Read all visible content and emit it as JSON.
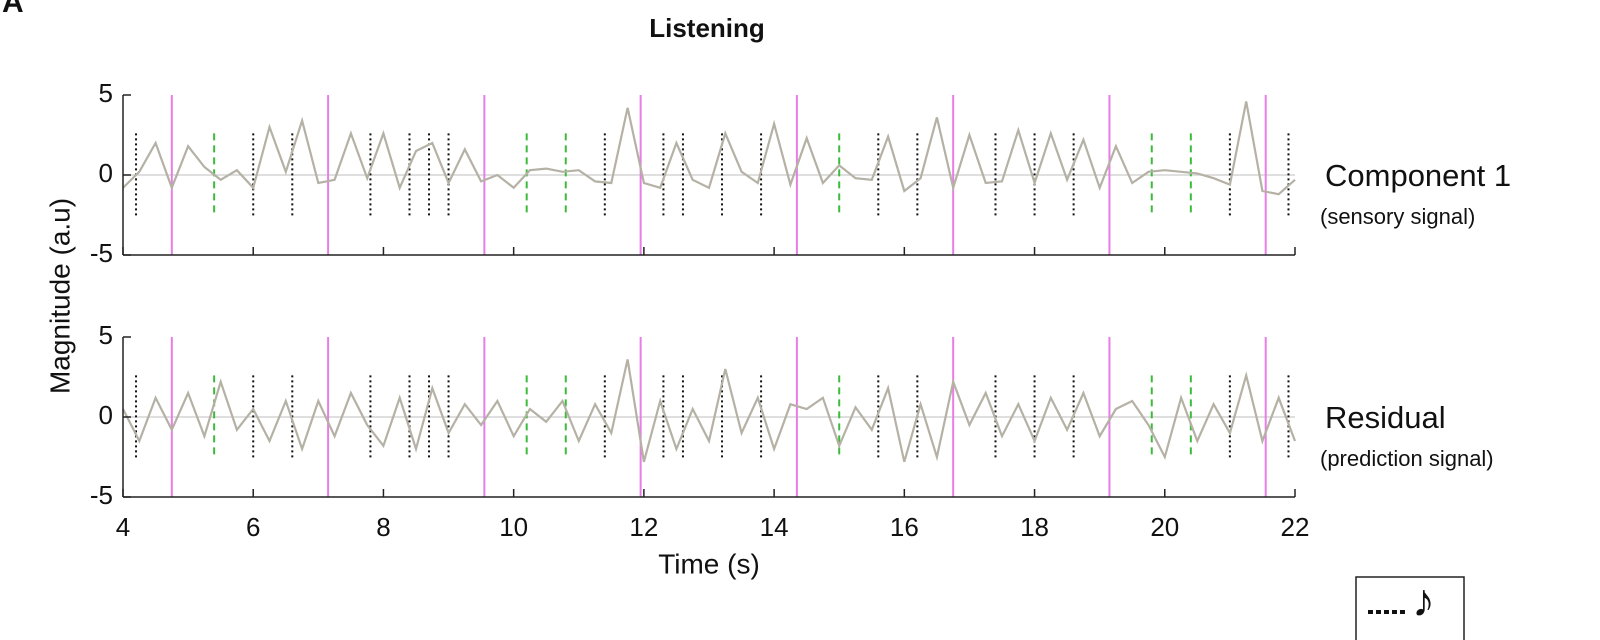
{
  "panel_letter": "A",
  "chart_data": [
    {
      "type": "line",
      "title": "Listening",
      "ylabel": "Magnitude (a.u)",
      "annotation": "Component 1",
      "annotation_sub": "(sensory signal)",
      "xlim": [
        4,
        22
      ],
      "xticks": [
        4,
        6,
        8,
        10,
        12,
        14,
        16,
        18,
        20,
        22
      ],
      "ylim": [
        -5,
        5
      ],
      "yticks": [
        5,
        0,
        -5
      ],
      "x": [
        4,
        4.25,
        4.5,
        4.75,
        5,
        5.25,
        5.5,
        5.75,
        6,
        6.25,
        6.5,
        6.75,
        7,
        7.25,
        7.5,
        7.75,
        8,
        8.25,
        8.5,
        8.75,
        9,
        9.25,
        9.5,
        9.75,
        10,
        10.25,
        10.5,
        10.75,
        11,
        11.25,
        11.5,
        11.75,
        12,
        12.25,
        12.5,
        12.75,
        13,
        13.25,
        13.5,
        13.75,
        14,
        14.25,
        14.5,
        14.75,
        15,
        15.25,
        15.5,
        15.75,
        16,
        16.25,
        16.5,
        16.75,
        17,
        17.25,
        17.5,
        17.75,
        18,
        18.25,
        18.5,
        18.75,
        19,
        19.25,
        19.5,
        19.75,
        20,
        20.25,
        20.5,
        20.75,
        21,
        21.25,
        21.5,
        21.75,
        22
      ],
      "series": [
        {
          "color": "#b5b1a5",
          "values": [
            -0.8,
            0.2,
            2.0,
            -0.8,
            1.8,
            0.5,
            -0.3,
            0.3,
            -0.8,
            3.0,
            0.2,
            3.4,
            -0.5,
            -0.3,
            2.6,
            -0.2,
            2.6,
            -0.8,
            1.5,
            2.0,
            -0.5,
            1.6,
            -0.4,
            0,
            -0.8,
            0.3,
            0.4,
            0.2,
            0.3,
            -0.4,
            -0.5,
            4.2,
            -0.5,
            -0.8,
            2.0,
            -0.3,
            -0.8,
            2.6,
            0.2,
            -0.5,
            3.2,
            -0.6,
            2.3,
            -0.5,
            0.6,
            -0.2,
            -0.3,
            2.4,
            -1.0,
            -0.2,
            3.6,
            -0.8,
            2.5,
            -0.5,
            -0.4,
            2.8,
            -0.5,
            2.6,
            -0.3,
            2.2,
            -0.8,
            1.8,
            -0.5,
            0.2,
            0.3,
            0.2,
            0.1,
            -0.2,
            -0.6,
            4.6,
            -1.0,
            -1.2,
            -0.3
          ]
        }
      ],
      "events": {
        "bars": [
          4.75,
          7.15,
          9.55,
          11.95,
          14.35,
          16.75,
          19.15,
          21.55
        ],
        "onsets": [
          4.2,
          6.0,
          6.6,
          7.8,
          8.4,
          8.7,
          9.0,
          11.4,
          12.3,
          12.6,
          13.2,
          13.8,
          15.6,
          16.2,
          17.4,
          18.0,
          18.6,
          21.0,
          21.9
        ],
        "omissions": [
          5.4,
          10.2,
          10.8,
          15.0,
          19.8,
          20.4
        ]
      }
    },
    {
      "type": "line",
      "xlabel": "Time (s)",
      "annotation": "Residual",
      "annotation_sub": "(prediction signal)",
      "xlim": [
        4,
        22
      ],
      "xticks": [
        4,
        6,
        8,
        10,
        12,
        14,
        16,
        18,
        20,
        22
      ],
      "ylim": [
        -5,
        5
      ],
      "yticks": [
        5,
        0,
        -5
      ],
      "x": [
        4,
        4.25,
        4.5,
        4.75,
        5,
        5.25,
        5.5,
        5.75,
        6,
        6.25,
        6.5,
        6.75,
        7,
        7.25,
        7.5,
        7.75,
        8,
        8.25,
        8.5,
        8.75,
        9,
        9.25,
        9.5,
        9.75,
        10,
        10.25,
        10.5,
        10.75,
        11,
        11.25,
        11.5,
        11.75,
        12,
        12.25,
        12.5,
        12.75,
        13,
        13.25,
        13.5,
        13.75,
        14,
        14.25,
        14.5,
        14.75,
        15,
        15.25,
        15.5,
        15.75,
        16,
        16.25,
        16.5,
        16.75,
        17,
        17.25,
        17.5,
        17.75,
        18,
        18.25,
        18.5,
        18.75,
        19,
        19.25,
        19.5,
        19.75,
        20,
        20.25,
        20.5,
        20.75,
        21,
        21.25,
        21.5,
        21.75,
        22
      ],
      "series": [
        {
          "color": "#b5b1a5",
          "values": [
            0.5,
            -1.5,
            1.2,
            -0.8,
            1.5,
            -1.2,
            2.2,
            -0.8,
            0.5,
            -1.5,
            1.0,
            -2.0,
            1.0,
            -1.2,
            1.5,
            -0.5,
            -1.8,
            1.2,
            -2.0,
            1.8,
            -1.0,
            0.8,
            -0.5,
            1.0,
            -1.2,
            0.5,
            -0.3,
            1.0,
            -1.5,
            0.8,
            -1.0,
            3.6,
            -2.8,
            1.0,
            -2.0,
            0.5,
            -1.5,
            3.0,
            -1.0,
            1.2,
            -2.0,
            0.8,
            0.5,
            1.2,
            -1.8,
            0.6,
            -0.8,
            1.8,
            -2.8,
            0.8,
            -2.5,
            2.2,
            -0.5,
            1.5,
            -1.2,
            0.8,
            -1.5,
            1.2,
            -0.8,
            1.5,
            -1.2,
            0.5,
            1.0,
            -0.5,
            -2.5,
            1.2,
            -1.5,
            0.8,
            -1.0,
            2.6,
            -1.5,
            1.2,
            -1.5
          ]
        }
      ],
      "events": {
        "bars": [
          4.75,
          7.15,
          9.55,
          11.95,
          14.35,
          16.75,
          19.15,
          21.55
        ],
        "onsets": [
          4.2,
          6.0,
          6.6,
          7.8,
          8.4,
          8.7,
          9.0,
          11.4,
          12.3,
          12.6,
          13.2,
          13.8,
          15.6,
          16.2,
          17.4,
          18.0,
          18.6,
          21.0,
          21.9
        ],
        "omissions": [
          5.4,
          10.2,
          10.8,
          15.0,
          19.8,
          20.4
        ]
      }
    }
  ],
  "legend": {
    "symbol": "♪"
  }
}
